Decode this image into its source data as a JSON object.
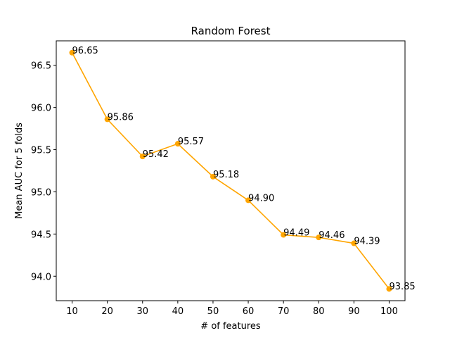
{
  "chart_data": {
    "type": "line",
    "title": "Random Forest",
    "xlabel": "# of features",
    "ylabel": "Mean AUC for 5 folds",
    "x": [
      10,
      20,
      30,
      40,
      50,
      60,
      70,
      80,
      90,
      100
    ],
    "series": [
      {
        "values": [
          96.65,
          95.86,
          95.42,
          95.57,
          95.18,
          94.9,
          94.49,
          94.46,
          94.39,
          93.85
        ],
        "data_labels": [
          "96.65",
          "95.86",
          "95.42",
          "95.57",
          "95.18",
          "94.90",
          "94.49",
          "94.46",
          "94.39",
          "93.85"
        ],
        "color": "#ffa500",
        "marker": "circle"
      }
    ],
    "xticks": [
      "10",
      "20",
      "30",
      "40",
      "50",
      "60",
      "70",
      "80",
      "90",
      "100"
    ],
    "yticks": [
      "94.0",
      "94.5",
      "95.0",
      "95.5",
      "96.0",
      "96.5"
    ],
    "xlim": [
      5.5,
      104.5
    ],
    "ylim": [
      93.71,
      96.79
    ],
    "grid": false,
    "legend": "none"
  }
}
